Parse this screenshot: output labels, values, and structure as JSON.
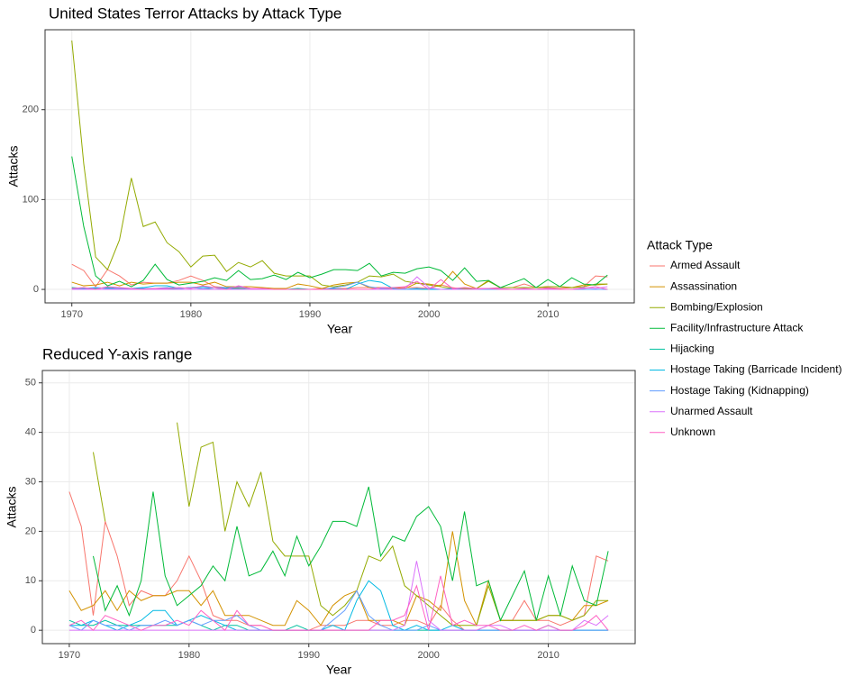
{
  "chart_data": [
    {
      "type": "line",
      "title": "United States Terror Attacks by Attack Type",
      "xlabel": "Year",
      "ylabel": "Attacks",
      "legend_title": "Attack Type",
      "legend": "right",
      "grid": true,
      "x": [
        1970,
        1971,
        1972,
        1973,
        1974,
        1975,
        1976,
        1977,
        1978,
        1979,
        1980,
        1981,
        1982,
        1983,
        1984,
        1985,
        1986,
        1987,
        1988,
        1989,
        1990,
        1991,
        1992,
        1993,
        1994,
        1995,
        1996,
        1997,
        1998,
        1999,
        2000,
        2001,
        2002,
        2003,
        2004,
        2005,
        2006,
        2007,
        2008,
        2009,
        2010,
        2011,
        2012,
        2013,
        2014,
        2015
      ],
      "xlim": [
        1967.75,
        2017.25
      ],
      "xticks": [
        1970,
        1980,
        1990,
        2000,
        2010
      ],
      "ylim": [
        -15,
        289
      ],
      "yticks": [
        0,
        100,
        200
      ],
      "series": [
        {
          "name": "Armed Assault",
          "color": "#F8766D",
          "values": [
            28,
            21,
            3,
            22,
            15,
            5,
            8,
            7,
            7,
            10,
            15,
            10,
            3,
            2,
            2,
            1,
            1,
            0,
            0,
            0,
            0,
            1,
            1,
            1,
            2,
            2,
            1,
            1,
            2,
            2,
            1,
            5,
            2,
            0,
            0,
            1,
            2,
            2,
            6,
            2,
            2,
            1,
            2,
            3,
            15,
            14
          ]
        },
        {
          "name": "Assassination",
          "color": "#D39200",
          "values": [
            8,
            4,
            5,
            8,
            4,
            8,
            6,
            7,
            7,
            8,
            8,
            5,
            8,
            3,
            3,
            3,
            2,
            1,
            1,
            6,
            4,
            1,
            5,
            7,
            8,
            2,
            2,
            2,
            1,
            7,
            6,
            4,
            20,
            6,
            1,
            10,
            2,
            2,
            2,
            2,
            3,
            3,
            2,
            5,
            5,
            6
          ]
        },
        {
          "name": "Bombing/Explosion",
          "color": "#93AA00",
          "values": [
            277,
            140,
            36,
            22,
            55,
            124,
            70,
            75,
            52,
            42,
            25,
            37,
            38,
            20,
            30,
            25,
            32,
            18,
            15,
            15,
            15,
            5,
            3,
            5,
            8,
            15,
            14,
            17,
            9,
            7,
            5,
            3,
            1,
            1,
            1,
            9,
            2,
            2,
            2,
            2,
            3,
            3,
            2,
            3,
            6,
            6
          ]
        },
        {
          "name": "Facility/Infrastructure Attack",
          "color": "#00BA38",
          "values": [
            148,
            70,
            15,
            4,
            9,
            3,
            10,
            28,
            11,
            5,
            7,
            9,
            13,
            10,
            21,
            11,
            12,
            16,
            11,
            19,
            13,
            17,
            22,
            22,
            21,
            29,
            15,
            19,
            18,
            23,
            25,
            21,
            10,
            24,
            9,
            10,
            2,
            7,
            12,
            2,
            11,
            3,
            13,
            6,
            5,
            16
          ]
        },
        {
          "name": "Hijacking",
          "color": "#00C19F",
          "values": [
            2,
            1,
            1,
            2,
            1,
            1,
            1,
            1,
            1,
            1,
            2,
            1,
            0,
            1,
            1,
            0,
            0,
            0,
            0,
            1,
            0,
            0,
            0,
            0,
            0,
            0,
            0,
            0,
            0,
            0,
            0,
            0,
            0,
            0,
            0,
            0,
            0,
            0,
            0,
            0,
            0,
            0,
            0,
            0,
            0,
            0
          ]
        },
        {
          "name": "Hostage Taking (Barricade Incident)",
          "color": "#00B9E3",
          "values": [
            1,
            1,
            2,
            1,
            0,
            1,
            2,
            4,
            4,
            1,
            2,
            3,
            2,
            1,
            0,
            0,
            0,
            0,
            0,
            0,
            0,
            0,
            1,
            0,
            6,
            10,
            8,
            1,
            0,
            1,
            0,
            0,
            1,
            0,
            0,
            0,
            0,
            0,
            0,
            0,
            1,
            0,
            0,
            0,
            0,
            0
          ]
        },
        {
          "name": "Hostage Taking (Kidnapping)",
          "color": "#619CFF",
          "values": [
            1,
            0,
            2,
            1,
            1,
            0,
            1,
            1,
            2,
            1,
            2,
            1,
            2,
            2,
            3,
            1,
            0,
            0,
            0,
            0,
            0,
            0,
            2,
            4,
            8,
            3,
            1,
            0,
            0,
            0,
            1,
            0,
            0,
            0,
            0,
            0,
            0,
            0,
            0,
            0,
            0,
            0,
            0,
            0,
            0,
            0
          ]
        },
        {
          "name": "Unarmed Assault",
          "color": "#DB72FB",
          "values": [
            0,
            0,
            0,
            0,
            0,
            0,
            0,
            0,
            0,
            0,
            0,
            0,
            0,
            0,
            0,
            0,
            0,
            0,
            0,
            0,
            0,
            0,
            0,
            0,
            0,
            0,
            0,
            0,
            1,
            14,
            2,
            0,
            0,
            0,
            0,
            1,
            1,
            0,
            0,
            0,
            0,
            0,
            0,
            2,
            1,
            3
          ]
        },
        {
          "name": "Unknown",
          "color": "#FF61C3",
          "values": [
            1,
            2,
            0,
            3,
            2,
            1,
            0,
            1,
            1,
            2,
            1,
            4,
            2,
            0,
            4,
            1,
            1,
            0,
            0,
            0,
            0,
            0,
            0,
            0,
            0,
            0,
            2,
            2,
            3,
            9,
            0,
            11,
            1,
            2,
            1,
            1,
            0,
            0,
            1,
            0,
            1,
            0,
            0,
            1,
            3,
            0
          ]
        }
      ]
    },
    {
      "type": "line",
      "title": "Reduced Y-axis range",
      "xlabel": "Year",
      "ylabel": "Attacks",
      "grid": true,
      "x": [
        1970,
        1971,
        1972,
        1973,
        1974,
        1975,
        1976,
        1977,
        1978,
        1979,
        1980,
        1981,
        1982,
        1983,
        1984,
        1985,
        1986,
        1987,
        1988,
        1989,
        1990,
        1991,
        1992,
        1993,
        1994,
        1995,
        1996,
        1997,
        1998,
        1999,
        2000,
        2001,
        2002,
        2003,
        2004,
        2005,
        2006,
        2007,
        2008,
        2009,
        2010,
        2011,
        2012,
        2013,
        2014,
        2015
      ],
      "xlim": [
        1967.75,
        2017.25
      ],
      "xticks": [
        1970,
        1980,
        1990,
        2000,
        2010
      ],
      "ylim": [
        -2.7,
        52.5
      ],
      "yticks": [
        0,
        10,
        20,
        30,
        40,
        50
      ],
      "series": [
        {
          "color": "#F8766D",
          "values": [
            28,
            21,
            3,
            22,
            15,
            5,
            8,
            7,
            7,
            10,
            15,
            10,
            3,
            2,
            2,
            1,
            1,
            0,
            0,
            0,
            0,
            1,
            1,
            1,
            2,
            2,
            1,
            1,
            2,
            2,
            1,
            5,
            2,
            0,
            0,
            1,
            2,
            2,
            6,
            2,
            2,
            1,
            2,
            3,
            15,
            14
          ]
        },
        {
          "color": "#D39200",
          "values": [
            8,
            4,
            5,
            8,
            4,
            8,
            6,
            7,
            7,
            8,
            8,
            5,
            8,
            3,
            3,
            3,
            2,
            1,
            1,
            6,
            4,
            1,
            5,
            7,
            8,
            2,
            2,
            2,
            1,
            7,
            6,
            4,
            20,
            6,
            1,
            10,
            2,
            2,
            2,
            2,
            3,
            3,
            2,
            5,
            5,
            6
          ]
        },
        {
          "color": "#93AA00",
          "values": [
            null,
            null,
            36,
            22,
            null,
            null,
            null,
            null,
            null,
            42,
            25,
            37,
            38,
            20,
            30,
            25,
            32,
            18,
            15,
            15,
            15,
            5,
            3,
            5,
            8,
            15,
            14,
            17,
            9,
            7,
            5,
            3,
            1,
            1,
            1,
            9,
            2,
            2,
            2,
            2,
            3,
            3,
            2,
            3,
            6,
            6
          ]
        },
        {
          "color": "#00BA38",
          "values": [
            null,
            null,
            15,
            4,
            9,
            3,
            10,
            28,
            11,
            5,
            7,
            9,
            13,
            10,
            21,
            11,
            12,
            16,
            11,
            19,
            13,
            17,
            22,
            22,
            21,
            29,
            15,
            19,
            18,
            23,
            25,
            21,
            10,
            24,
            9,
            10,
            2,
            7,
            12,
            2,
            11,
            3,
            13,
            6,
            5,
            16
          ]
        },
        {
          "color": "#00C19F",
          "values": [
            2,
            1,
            1,
            2,
            1,
            1,
            1,
            1,
            1,
            1,
            2,
            1,
            0,
            1,
            1,
            0,
            0,
            0,
            0,
            1,
            0,
            0,
            0,
            0,
            0,
            0,
            0,
            0,
            0,
            0,
            0,
            0,
            0,
            0,
            0,
            0,
            0,
            0,
            0,
            0,
            0,
            0,
            0,
            0,
            0,
            0
          ]
        },
        {
          "color": "#00B9E3",
          "values": [
            1,
            1,
            2,
            1,
            0,
            1,
            2,
            4,
            4,
            1,
            2,
            3,
            2,
            1,
            0,
            0,
            0,
            0,
            0,
            0,
            0,
            0,
            1,
            0,
            6,
            10,
            8,
            1,
            0,
            1,
            0,
            0,
            1,
            0,
            0,
            0,
            0,
            0,
            0,
            0,
            1,
            0,
            0,
            0,
            0,
            0
          ]
        },
        {
          "color": "#619CFF",
          "values": [
            1,
            0,
            2,
            1,
            1,
            0,
            1,
            1,
            2,
            1,
            2,
            1,
            2,
            2,
            3,
            1,
            0,
            0,
            0,
            0,
            0,
            0,
            2,
            4,
            8,
            3,
            1,
            0,
            0,
            0,
            1,
            0,
            0,
            0,
            0,
            0,
            0,
            0,
            0,
            0,
            0,
            0,
            0,
            0,
            0,
            0
          ]
        },
        {
          "color": "#DB72FB",
          "values": [
            0,
            0,
            0,
            0,
            0,
            0,
            0,
            0,
            0,
            0,
            0,
            0,
            0,
            0,
            0,
            0,
            0,
            0,
            0,
            0,
            0,
            0,
            0,
            0,
            0,
            0,
            0,
            0,
            1,
            14,
            2,
            0,
            0,
            0,
            0,
            1,
            1,
            0,
            0,
            0,
            0,
            0,
            0,
            2,
            1,
            3
          ]
        },
        {
          "color": "#FF61C3",
          "values": [
            1,
            2,
            0,
            3,
            2,
            1,
            0,
            1,
            1,
            2,
            1,
            4,
            2,
            0,
            4,
            1,
            1,
            0,
            0,
            0,
            0,
            0,
            0,
            0,
            0,
            0,
            2,
            2,
            3,
            9,
            0,
            11,
            1,
            2,
            1,
            1,
            0,
            0,
            1,
            0,
            1,
            0,
            0,
            1,
            3,
            0
          ]
        }
      ]
    }
  ]
}
